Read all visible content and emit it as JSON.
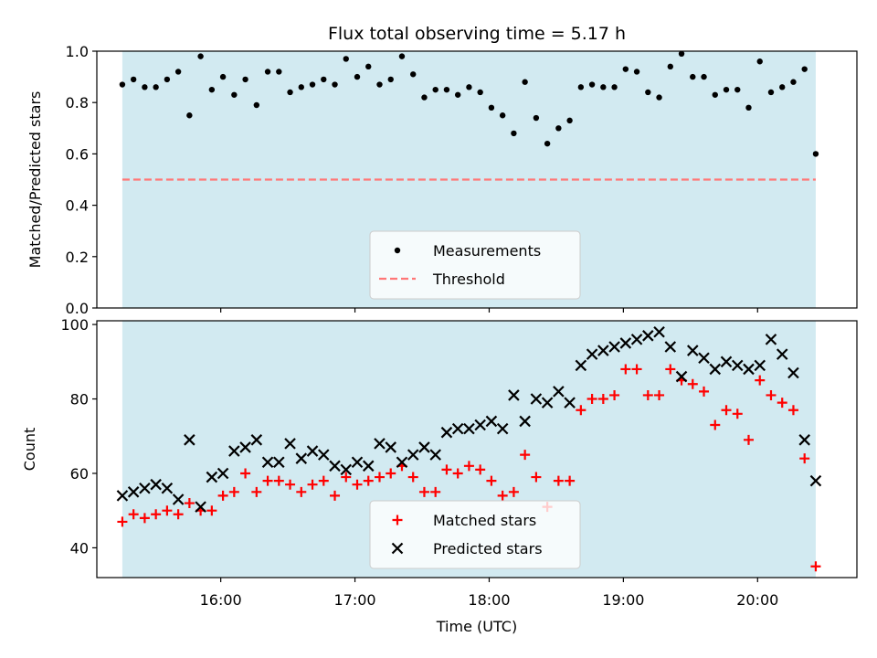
{
  "chart_data": [
    {
      "type": "scatter",
      "title": "Flux total observing time = 5.17 h",
      "ylabel": "Matched/Predicted stars",
      "xlabel": "",
      "ylim": [
        0,
        1.0
      ],
      "yticks": [
        "0.0",
        "0.2",
        "0.4",
        "0.6",
        "0.8",
        "1.0"
      ],
      "shaded_band_color": "#add8e6",
      "threshold": {
        "name": "Threshold",
        "value": 0.5,
        "color": "#ff7777"
      },
      "series": [
        {
          "name": "Measurements",
          "color": "#000000",
          "marker": "dot",
          "x": [
            "15:16",
            "15:21",
            "15:26",
            "15:31",
            "15:36",
            "15:41",
            "15:46",
            "15:51",
            "15:56",
            "16:01",
            "16:06",
            "16:11",
            "16:16",
            "16:21",
            "16:26",
            "16:31",
            "16:36",
            "16:41",
            "16:46",
            "16:51",
            "16:56",
            "17:01",
            "17:06",
            "17:11",
            "17:16",
            "17:21",
            "17:26",
            "17:31",
            "17:36",
            "17:41",
            "17:46",
            "17:51",
            "17:56",
            "18:01",
            "18:06",
            "18:11",
            "18:16",
            "18:21",
            "18:26",
            "18:31",
            "18:36",
            "18:41",
            "18:46",
            "18:51",
            "18:56",
            "19:01",
            "19:06",
            "19:11",
            "19:16",
            "19:21",
            "19:26",
            "19:31",
            "19:36",
            "19:41",
            "19:46",
            "19:51",
            "19:56",
            "20:01",
            "20:06",
            "20:11",
            "20:16",
            "20:21",
            "20:26"
          ],
          "y": [
            0.87,
            0.89,
            0.86,
            0.86,
            0.89,
            0.92,
            0.75,
            0.98,
            0.85,
            0.9,
            0.83,
            0.89,
            0.79,
            0.92,
            0.92,
            0.84,
            0.86,
            0.87,
            0.89,
            0.87,
            0.97,
            0.9,
            0.94,
            0.87,
            0.89,
            0.98,
            0.91,
            0.82,
            0.85,
            0.85,
            0.83,
            0.86,
            0.84,
            0.78,
            0.75,
            0.68,
            0.88,
            0.74,
            0.64,
            0.7,
            0.73,
            0.86,
            0.87,
            0.86,
            0.86,
            0.93,
            0.92,
            0.84,
            0.82,
            0.94,
            0.99,
            0.9,
            0.9,
            0.83,
            0.85,
            0.85,
            0.78,
            0.96,
            0.84,
            0.86,
            0.88,
            0.93,
            0.6
          ]
        }
      ]
    },
    {
      "type": "scatter",
      "title": "",
      "xlabel": "Time (UTC)",
      "ylabel": "Count",
      "ylim": [
        32,
        101
      ],
      "yticks": [
        "40",
        "60",
        "80",
        "100"
      ],
      "xticks": [
        "16:00",
        "17:00",
        "18:00",
        "19:00",
        "20:00"
      ],
      "shaded_band_color": "#add8e6",
      "series": [
        {
          "name": "Matched stars",
          "color": "#ff0000",
          "marker": "plus",
          "x": [
            "15:16",
            "15:21",
            "15:26",
            "15:31",
            "15:36",
            "15:41",
            "15:46",
            "15:51",
            "15:56",
            "16:01",
            "16:06",
            "16:11",
            "16:16",
            "16:21",
            "16:26",
            "16:31",
            "16:36",
            "16:41",
            "16:46",
            "16:51",
            "16:56",
            "17:01",
            "17:06",
            "17:11",
            "17:16",
            "17:21",
            "17:26",
            "17:31",
            "17:36",
            "17:41",
            "17:46",
            "17:51",
            "17:56",
            "18:01",
            "18:06",
            "18:11",
            "18:16",
            "18:21",
            "18:26",
            "18:31",
            "18:36",
            "18:41",
            "18:46",
            "18:51",
            "18:56",
            "19:01",
            "19:06",
            "19:11",
            "19:16",
            "19:21",
            "19:26",
            "19:31",
            "19:36",
            "19:41",
            "19:46",
            "19:51",
            "19:56",
            "20:01",
            "20:06",
            "20:11",
            "20:16",
            "20:21",
            "20:26"
          ],
          "y": [
            47,
            49,
            48,
            49,
            50,
            49,
            52,
            50,
            50,
            54,
            55,
            60,
            55,
            58,
            58,
            57,
            55,
            57,
            58,
            54,
            59,
            57,
            58,
            59,
            60,
            62,
            59,
            55,
            55,
            61,
            60,
            62,
            61,
            58,
            54,
            55,
            65,
            59,
            51,
            58,
            58,
            77,
            80,
            80,
            81,
            88,
            88,
            81,
            81,
            88,
            85,
            84,
            82,
            73,
            77,
            76,
            69,
            85,
            81,
            79,
            77,
            64,
            35
          ]
        },
        {
          "name": "Predicted stars",
          "color": "#000000",
          "marker": "x",
          "x": [
            "15:16",
            "15:21",
            "15:26",
            "15:31",
            "15:36",
            "15:41",
            "15:46",
            "15:51",
            "15:56",
            "16:01",
            "16:06",
            "16:11",
            "16:16",
            "16:21",
            "16:26",
            "16:31",
            "16:36",
            "16:41",
            "16:46",
            "16:51",
            "16:56",
            "17:01",
            "17:06",
            "17:11",
            "17:16",
            "17:21",
            "17:26",
            "17:31",
            "17:36",
            "17:41",
            "17:46",
            "17:51",
            "17:56",
            "18:01",
            "18:06",
            "18:11",
            "18:16",
            "18:21",
            "18:26",
            "18:31",
            "18:36",
            "18:41",
            "18:46",
            "18:51",
            "18:56",
            "19:01",
            "19:06",
            "19:11",
            "19:16",
            "19:21",
            "19:26",
            "19:31",
            "19:36",
            "19:41",
            "19:46",
            "19:51",
            "19:56",
            "20:01",
            "20:06",
            "20:11",
            "20:16",
            "20:21",
            "20:26"
          ],
          "y": [
            54,
            55,
            56,
            57,
            56,
            53,
            69,
            51,
            59,
            60,
            66,
            67,
            69,
            63,
            63,
            68,
            64,
            66,
            65,
            62,
            61,
            63,
            62,
            68,
            67,
            63,
            65,
            67,
            65,
            71,
            72,
            72,
            73,
            74,
            72,
            81,
            74,
            80,
            79,
            82,
            79,
            89,
            92,
            93,
            94,
            95,
            96,
            97,
            98,
            94,
            86,
            93,
            91,
            88,
            90,
            89,
            88,
            89,
            96,
            92,
            87,
            69,
            58
          ]
        }
      ]
    }
  ]
}
